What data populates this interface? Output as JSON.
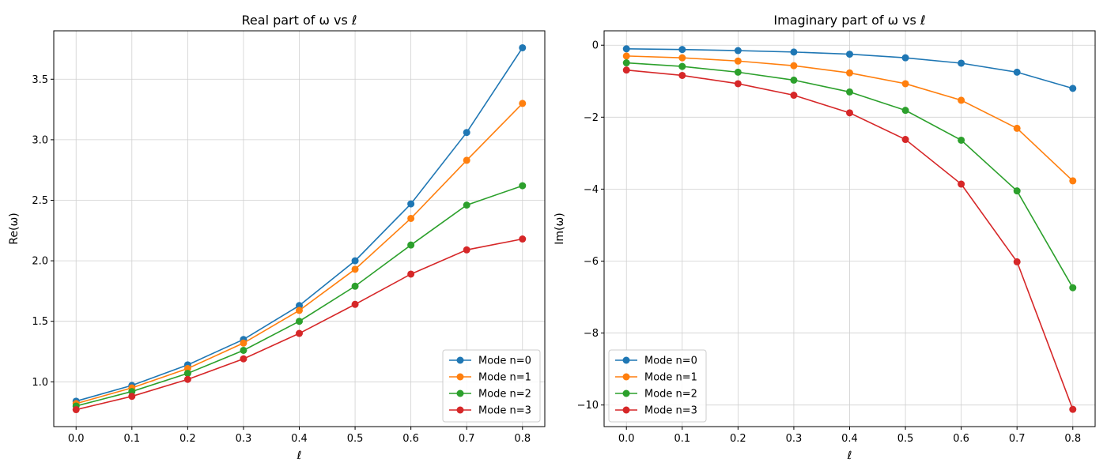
{
  "chart_data": [
    {
      "type": "line",
      "title": "Real part of ω vs ℓ",
      "xlabel": "ℓ",
      "ylabel": "Re(ω)",
      "xlim": [
        -0.04,
        0.84
      ],
      "ylim": [
        0.63,
        3.9
      ],
      "xticks": [
        0.0,
        0.1,
        0.2,
        0.3,
        0.4,
        0.5,
        0.6,
        0.7,
        0.8
      ],
      "xtick_labels": [
        "0.0",
        "0.1",
        "0.2",
        "0.3",
        "0.4",
        "0.5",
        "0.6",
        "0.7",
        "0.8"
      ],
      "yticks": [
        1.0,
        1.5,
        2.0,
        2.5,
        3.0,
        3.5
      ],
      "ytick_labels": [
        "1.0",
        "1.5",
        "2.0",
        "2.5",
        "3.0",
        "3.5"
      ],
      "grid": true,
      "legend_position": "bottom-right",
      "x": [
        0.0,
        0.1,
        0.2,
        0.3,
        0.4,
        0.5,
        0.6,
        0.7,
        0.8
      ],
      "series": [
        {
          "name": "Mode n=0",
          "color": "#1f77b4",
          "values": [
            0.84,
            0.97,
            1.14,
            1.35,
            1.63,
            2.0,
            2.47,
            3.06,
            3.76
          ]
        },
        {
          "name": "Mode n=1",
          "color": "#ff7f0e",
          "values": [
            0.82,
            0.95,
            1.11,
            1.32,
            1.59,
            1.93,
            2.35,
            2.83,
            3.3
          ]
        },
        {
          "name": "Mode n=2",
          "color": "#2ca02c",
          "values": [
            0.8,
            0.92,
            1.07,
            1.26,
            1.5,
            1.79,
            2.13,
            2.46,
            2.62
          ]
        },
        {
          "name": "Mode n=3",
          "color": "#d62728",
          "values": [
            0.77,
            0.88,
            1.02,
            1.19,
            1.4,
            1.64,
            1.89,
            2.09,
            2.18
          ]
        }
      ]
    },
    {
      "type": "line",
      "title": "Imaginary part of ω vs ℓ",
      "xlabel": "ℓ",
      "ylabel": "Im(ω)",
      "xlim": [
        -0.04,
        0.84
      ],
      "ylim": [
        -10.6,
        0.4
      ],
      "xticks": [
        0.0,
        0.1,
        0.2,
        0.3,
        0.4,
        0.5,
        0.6,
        0.7,
        0.8
      ],
      "xtick_labels": [
        "0.0",
        "0.1",
        "0.2",
        "0.3",
        "0.4",
        "0.5",
        "0.6",
        "0.7",
        "0.8"
      ],
      "yticks": [
        0,
        -2,
        -4,
        -6,
        -8,
        -10
      ],
      "ytick_labels": [
        "0",
        "−2",
        "−4",
        "−6",
        "−8",
        "−10"
      ],
      "grid": true,
      "legend_position": "bottom-left",
      "x": [
        0.0,
        0.1,
        0.2,
        0.3,
        0.4,
        0.5,
        0.6,
        0.7,
        0.8
      ],
      "series": [
        {
          "name": "Mode n=0",
          "color": "#1f77b4",
          "values": [
            -0.1,
            -0.12,
            -0.15,
            -0.19,
            -0.25,
            -0.35,
            -0.5,
            -0.75,
            -1.2
          ]
        },
        {
          "name": "Mode n=1",
          "color": "#ff7f0e",
          "values": [
            -0.3,
            -0.35,
            -0.44,
            -0.57,
            -0.77,
            -1.07,
            -1.53,
            -2.31,
            -3.77
          ]
        },
        {
          "name": "Mode n=2",
          "color": "#2ca02c",
          "values": [
            -0.49,
            -0.59,
            -0.75,
            -0.97,
            -1.3,
            -1.81,
            -2.64,
            -4.05,
            -6.74
          ]
        },
        {
          "name": "Mode n=3",
          "color": "#d62728",
          "values": [
            -0.69,
            -0.84,
            -1.07,
            -1.39,
            -1.88,
            -2.62,
            -3.86,
            -6.02,
            -10.12
          ]
        }
      ]
    }
  ]
}
